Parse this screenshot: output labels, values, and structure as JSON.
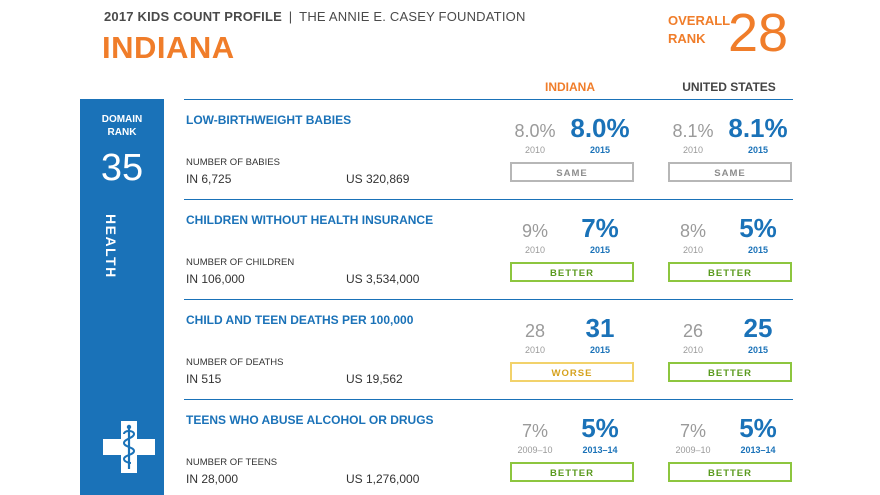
{
  "header": {
    "profile_title": "2017 KIDS COUNT PROFILE",
    "separator": "|",
    "organization": "THE ANNIE E. CASEY FOUNDATION",
    "state_name": "INDIANA",
    "overall_rank_label_line1": "OVERALL",
    "overall_rank_label_line2": "RANK",
    "overall_rank_value": "28"
  },
  "columns": {
    "state": "INDIANA",
    "us": "UNITED STATES"
  },
  "domain": {
    "rank_label_line1": "DOMAIN",
    "rank_label_line2": "RANK",
    "rank_value": "35",
    "name": "HEALTH",
    "icon": "health-caduceus-cross-icon"
  },
  "colors": {
    "blue": "#1a72b8",
    "orange": "#f07d2a",
    "better": "#8dc63f",
    "worse": "#f2d26b",
    "same": "#b7b7b7"
  },
  "indicators": [
    {
      "title": "LOW-BIRTHWEIGHT BABIES",
      "count_label": "NUMBER OF BABIES",
      "state_count": "IN 6,725",
      "us_count": "US 320,869",
      "state": {
        "old_value": "8.0%",
        "old_year": "2010",
        "new_value": "8.0%",
        "new_year": "2015",
        "trend": "SAME"
      },
      "us": {
        "old_value": "8.1%",
        "old_year": "2010",
        "new_value": "8.1%",
        "new_year": "2015",
        "trend": "SAME"
      }
    },
    {
      "title": "CHILDREN WITHOUT HEALTH INSURANCE",
      "count_label": "NUMBER OF CHILDREN",
      "state_count": "IN 106,000",
      "us_count": "US 3,534,000",
      "state": {
        "old_value": "9%",
        "old_year": "2010",
        "new_value": "7%",
        "new_year": "2015",
        "trend": "BETTER"
      },
      "us": {
        "old_value": "8%",
        "old_year": "2010",
        "new_value": "5%",
        "new_year": "2015",
        "trend": "BETTER"
      }
    },
    {
      "title": "CHILD AND TEEN DEATHS PER 100,000",
      "count_label": "NUMBER OF DEATHS",
      "state_count": "IN 515",
      "us_count": "US 19,562",
      "state": {
        "old_value": "28",
        "old_year": "2010",
        "new_value": "31",
        "new_year": "2015",
        "trend": "WORSE"
      },
      "us": {
        "old_value": "26",
        "old_year": "2010",
        "new_value": "25",
        "new_year": "2015",
        "trend": "BETTER"
      }
    },
    {
      "title": "TEENS WHO ABUSE ALCOHOL OR DRUGS",
      "count_label": "NUMBER OF TEENS",
      "state_count": "IN 28,000",
      "us_count": "US 1,276,000",
      "state": {
        "old_value": "7%",
        "old_year": "2009–10",
        "new_value": "5%",
        "new_year": "2013–14",
        "trend": "BETTER"
      },
      "us": {
        "old_value": "7%",
        "old_year": "2009–10",
        "new_value": "5%",
        "new_year": "2013–14",
        "trend": "BETTER"
      }
    }
  ]
}
